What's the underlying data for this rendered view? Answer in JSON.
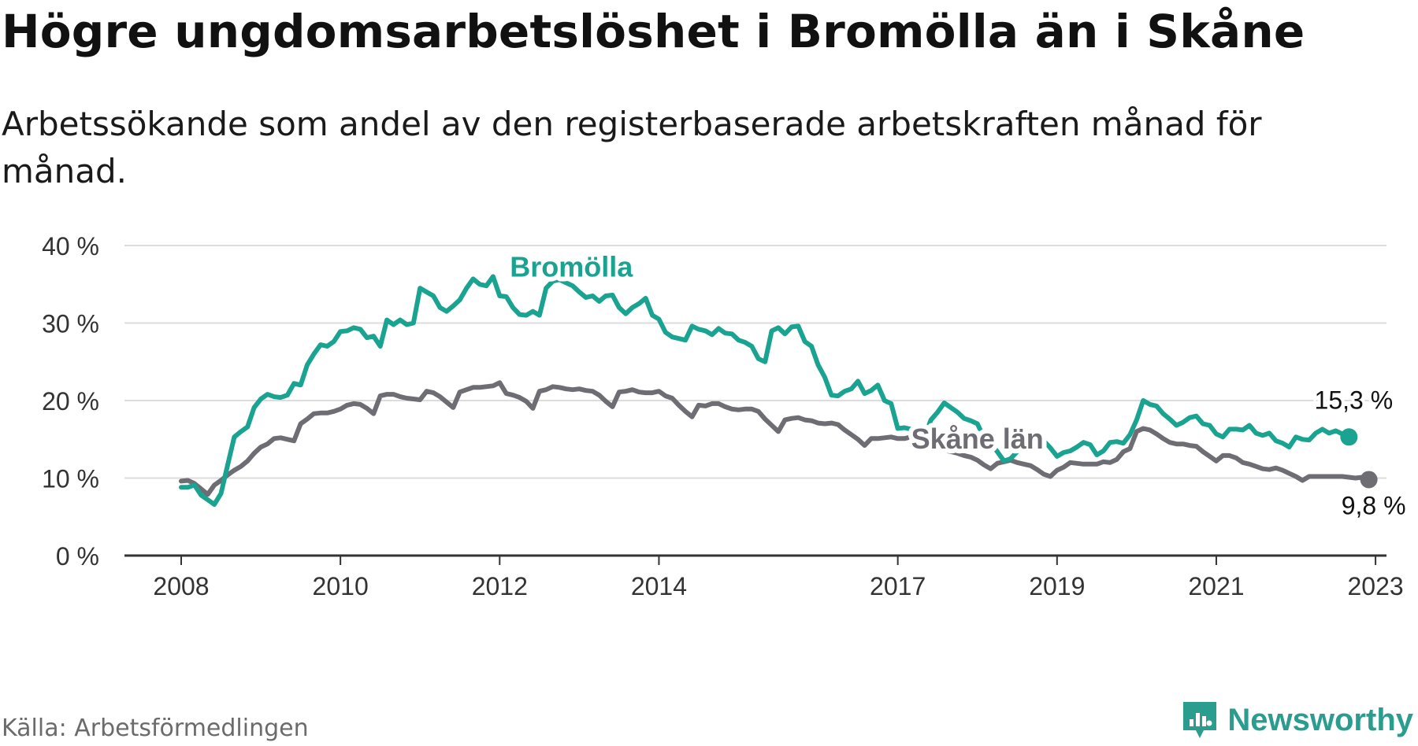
{
  "title": "Högre ungdomsarbetslöshet i Bromölla än i Skåne",
  "subtitle": "Arbetssökande som andel av den registerbaserade arbetskraften månad för månad.",
  "source": "Källa: Arbetsförmedlingen",
  "brand": {
    "name": "Newsworthy",
    "icon": "newsworthy-logo-icon",
    "color": "#2a9d8f"
  },
  "chart_data": {
    "type": "line",
    "title": "Högre ungdomsarbetslöshet i Bromölla än i Skåne",
    "ylabel": "",
    "xlabel": "",
    "ylim": [
      0,
      40
    ],
    "yticks": [
      0,
      10,
      20,
      30,
      40
    ],
    "ytick_labels": [
      "0 %",
      "10 %",
      "20 %",
      "30 %",
      "40 %"
    ],
    "xlim": [
      2008.0,
      2023.85
    ],
    "xticks": [
      2008,
      2010,
      2012,
      2014,
      2017,
      2019,
      2021,
      2023
    ],
    "xtick_labels": [
      "2008",
      "2010",
      "2012",
      "2014",
      "2017",
      "2019",
      "2021",
      "2023"
    ],
    "grid": true,
    "series": [
      {
        "name": "Bromölla",
        "color": "#1aa391",
        "start": 2008.0,
        "step": 0.08333,
        "values": [
          8.8,
          8.8,
          9.1,
          7.8,
          7.2,
          6.6,
          8.0,
          11.7,
          15.3,
          16.0,
          16.6,
          19.1,
          20.2,
          20.8,
          20.5,
          20.4,
          20.7,
          22.2,
          22.0,
          24.6,
          26.0,
          27.2,
          27.0,
          27.6,
          28.9,
          29.0,
          29.4,
          29.2,
          28.1,
          28.3,
          27.0,
          30.4,
          29.8,
          30.4,
          29.8,
          30.0,
          34.5,
          34.0,
          33.5,
          32.0,
          31.5,
          32.2,
          33.0,
          34.5,
          35.7,
          35.0,
          34.8,
          36.0,
          33.5,
          33.4,
          32.0,
          31.1,
          31.0,
          31.5,
          31.0,
          34.5,
          35.4,
          35.6,
          35.2,
          34.8,
          34.0,
          33.3,
          33.5,
          32.8,
          33.5,
          33.6,
          32.0,
          31.2,
          32.0,
          32.5,
          33.2,
          31.0,
          30.5,
          28.8,
          28.2,
          28.0,
          27.8,
          29.6,
          29.2,
          29.0,
          28.5,
          29.3,
          28.7,
          28.6,
          27.8,
          27.5,
          27.0,
          25.4,
          25.0,
          29.0,
          29.4,
          28.6,
          29.5,
          29.6,
          27.6,
          27.0,
          24.6,
          23.0,
          20.7,
          20.6,
          21.2,
          21.5,
          22.5,
          20.9,
          21.3,
          22.0,
          20.0,
          19.6,
          16.4,
          16.5,
          16.3,
          15.6,
          15.2,
          17.5,
          18.5,
          19.7,
          19.1,
          18.5,
          17.7,
          17.4,
          17.0,
          15.2,
          14.5,
          13.4,
          12.2,
          12.5,
          13.4,
          14.2,
          14.8,
          15.3,
          14.8,
          13.9,
          12.8,
          13.3,
          13.5,
          14.0,
          14.6,
          14.3,
          13.0,
          13.5,
          14.6,
          14.7,
          14.5,
          15.6,
          17.5,
          20.0,
          19.5,
          19.3,
          18.3,
          17.6,
          16.8,
          17.2,
          17.8,
          18.0,
          17.0,
          16.8,
          15.7,
          15.3,
          16.3,
          16.3,
          16.2,
          16.8,
          15.8,
          15.5,
          15.8,
          14.8,
          14.5,
          14.0,
          15.3,
          15.0,
          14.9,
          15.8,
          16.3,
          15.8,
          16.1,
          15.7,
          15.3
        ]
      },
      {
        "name": "Skåne län",
        "color": "#6e6d73",
        "start": 2008.0,
        "step": 0.08333,
        "values": [
          9.6,
          9.7,
          9.3,
          8.6,
          7.9,
          9.1,
          9.7,
          10.4,
          11.0,
          11.5,
          12.2,
          13.2,
          14.0,
          14.4,
          15.1,
          15.2,
          15.0,
          14.8,
          17.0,
          17.6,
          18.3,
          18.4,
          18.4,
          18.6,
          18.9,
          19.4,
          19.6,
          19.5,
          19.0,
          18.3,
          20.6,
          20.8,
          20.8,
          20.5,
          20.3,
          20.2,
          20.1,
          21.2,
          21.0,
          20.5,
          19.8,
          19.1,
          21.1,
          21.4,
          21.7,
          21.7,
          21.8,
          21.9,
          22.3,
          20.9,
          20.7,
          20.4,
          19.9,
          19.0,
          21.2,
          21.4,
          21.8,
          21.7,
          21.5,
          21.4,
          21.5,
          21.3,
          21.2,
          20.7,
          19.9,
          19.2,
          21.1,
          21.2,
          21.4,
          21.1,
          21.0,
          21.0,
          21.2,
          20.6,
          20.3,
          19.4,
          18.6,
          17.9,
          19.4,
          19.3,
          19.6,
          19.6,
          19.2,
          18.9,
          18.8,
          18.9,
          18.9,
          18.6,
          17.6,
          16.8,
          16.0,
          17.5,
          17.7,
          17.8,
          17.5,
          17.4,
          17.1,
          17.0,
          17.1,
          16.9,
          16.2,
          15.6,
          15.0,
          14.2,
          15.1,
          15.1,
          15.2,
          15.3,
          15.1,
          15.1,
          15.3,
          15.0,
          14.6,
          14.2,
          13.9,
          13.6,
          13.4,
          13.2,
          12.9,
          12.7,
          12.3,
          11.7,
          11.2,
          11.9,
          12.1,
          12.3,
          12.0,
          11.8,
          11.6,
          11.1,
          10.5,
          10.2,
          11.0,
          11.4,
          12.0,
          11.9,
          11.8,
          11.8,
          11.8,
          12.1,
          12.0,
          12.4,
          13.4,
          13.8,
          16.0,
          16.4,
          16.2,
          15.7,
          15.1,
          14.6,
          14.4,
          14.4,
          14.2,
          14.1,
          13.4,
          12.8,
          12.2,
          12.9,
          12.9,
          12.6,
          12.0,
          11.8,
          11.5,
          11.2,
          11.1,
          11.3,
          11.0,
          10.6,
          10.2,
          9.7,
          10.2,
          10.2,
          10.2,
          10.2,
          10.2,
          10.2,
          10.1,
          10.0,
          10.1,
          9.8
        ]
      }
    ],
    "series_labels": [
      {
        "name": "Bromölla",
        "x": 2012.9,
        "y": 36.0
      },
      {
        "name": "Skåne län",
        "x": 2018.0,
        "y": 13.8
      }
    ],
    "end_labels": [
      "15,3 %",
      "9,8 %"
    ]
  }
}
